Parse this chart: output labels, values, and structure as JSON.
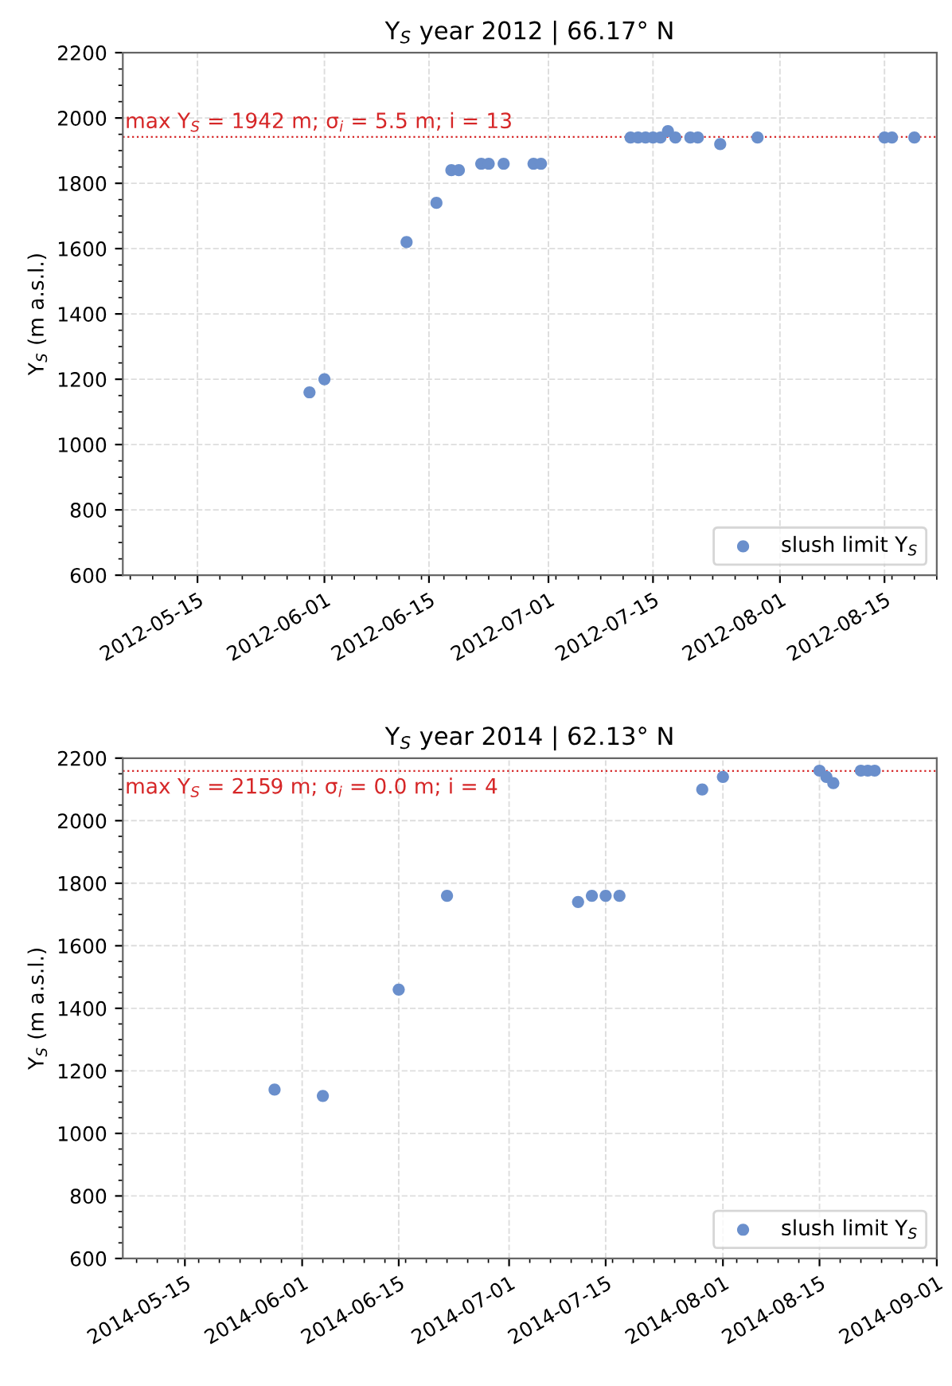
{
  "chart_data": [
    {
      "type": "scatter",
      "title": "Y$_{S}$ year 2012 | 66.17° N",
      "ylabel": "Y$_{S}$ (m a.s.l.)",
      "x": [
        "2012-05-30",
        "2012-06-01",
        "2012-06-12",
        "2012-06-16",
        "2012-06-18",
        "2012-06-19",
        "2012-06-22",
        "2012-06-23",
        "2012-06-25",
        "2012-06-29",
        "2012-06-30",
        "2012-07-12",
        "2012-07-13",
        "2012-07-14",
        "2012-07-15",
        "2012-07-16",
        "2012-07-17",
        "2012-07-18",
        "2012-07-20",
        "2012-07-21",
        "2012-07-24",
        "2012-07-29",
        "2012-08-15",
        "2012-08-16",
        "2012-08-19"
      ],
      "series": [
        {
          "name": "slush limit Y$_{S}$",
          "color": "#6a8fcc",
          "values": [
            1160,
            1200,
            1620,
            1740,
            1840,
            1840,
            1860,
            1860,
            1860,
            1860,
            1860,
            1940,
            1940,
            1940,
            1940,
            1940,
            1960,
            1940,
            1940,
            1940,
            1920,
            1940,
            1940,
            1940,
            1940
          ]
        }
      ],
      "xlim": [
        "2012-05-05",
        "2012-08-22"
      ],
      "xticks": [
        "2012-05-15",
        "2012-06-01",
        "2012-06-15",
        "2012-07-01",
        "2012-07-15",
        "2012-08-01",
        "2012-08-15"
      ],
      "ylim": [
        600,
        2200
      ],
      "yticks": [
        600,
        800,
        1000,
        1200,
        1400,
        1600,
        1800,
        2000,
        2200
      ],
      "ref_lines": [
        {
          "axis": "y",
          "value": 1942,
          "label": "max Y$_{S}$ = 1942 m; σ$_{i}$ = 5.5 m; i = 13",
          "color": "#d62728",
          "line_style": "dotted"
        }
      ],
      "grid": true,
      "legend": "bottom right",
      "marker": "circle"
    },
    {
      "type": "scatter",
      "title": "Y$_{S}$ year 2014 | 62.13° N",
      "ylabel": "Y$_{S}$ (m a.s.l.)",
      "x": [
        "2014-05-28",
        "2014-06-04",
        "2014-06-15",
        "2014-06-22",
        "2014-07-11",
        "2014-07-13",
        "2014-07-15",
        "2014-07-17",
        "2014-07-29",
        "2014-08-01",
        "2014-08-15",
        "2014-08-16",
        "2014-08-17",
        "2014-08-21",
        "2014-08-22",
        "2014-08-23"
      ],
      "series": [
        {
          "name": "slush limit Y$_{S}$",
          "color": "#6a8fcc",
          "values": [
            1140,
            1120,
            1460,
            1760,
            1740,
            1760,
            1760,
            1760,
            2100,
            2140,
            2160,
            2140,
            2120,
            2160,
            2160,
            2160
          ]
        }
      ],
      "xlim": [
        "2014-05-06",
        "2014-09-01"
      ],
      "xticks": [
        "2014-05-15",
        "2014-06-01",
        "2014-06-15",
        "2014-07-01",
        "2014-07-15",
        "2014-08-01",
        "2014-08-15",
        "2014-09-01"
      ],
      "ylim": [
        600,
        2200
      ],
      "yticks": [
        600,
        800,
        1000,
        1200,
        1400,
        1600,
        1800,
        2000,
        2200
      ],
      "ref_lines": [
        {
          "axis": "y",
          "value": 2159,
          "label": "max Y$_{S}$ = 2159 m; σ$_{i}$ = 0.0 m; i = 4",
          "color": "#d62728",
          "line_style": "dotted"
        }
      ],
      "grid": true,
      "legend": "bottom right",
      "marker": "circle"
    }
  ]
}
